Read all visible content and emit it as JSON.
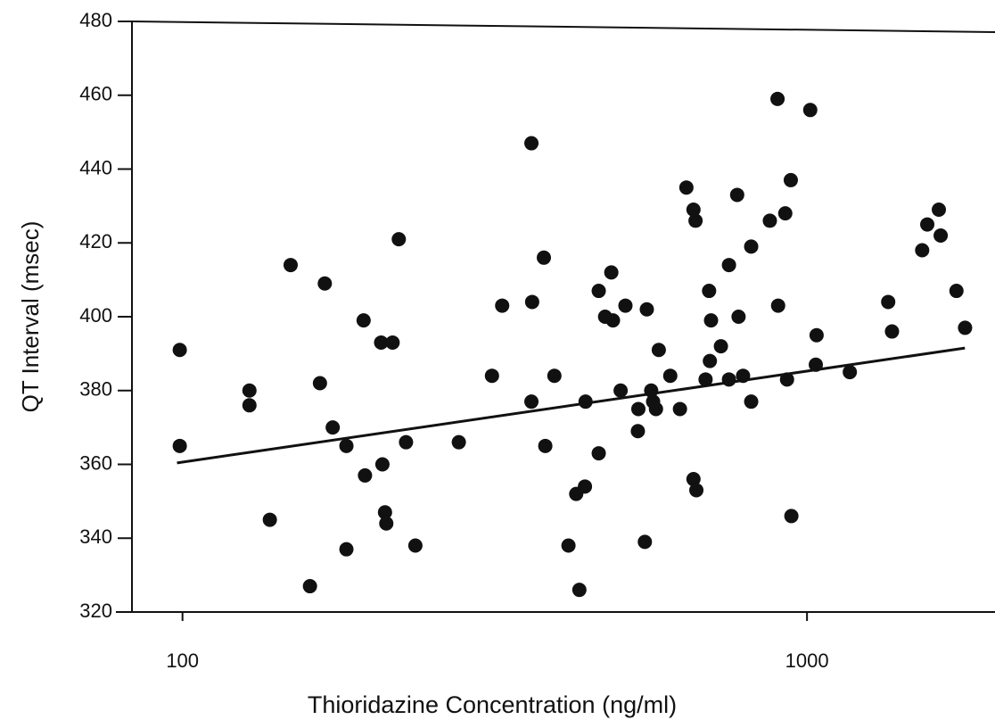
{
  "chart_data": {
    "type": "scatter",
    "x_label": "Thioridazine Concentration (ng/ml)",
    "y_label": "QT Interval (msec)",
    "x_log": true,
    "xlim": [
      83,
      2000
    ],
    "xticks": [
      100,
      1000
    ],
    "ylim": [
      320,
      480
    ],
    "yticks": [
      320,
      340,
      360,
      380,
      400,
      420,
      440,
      460,
      480
    ],
    "color": "#111111",
    "x": [
      99,
      99,
      128,
      128,
      138,
      149,
      160,
      166,
      169,
      174,
      183,
      183,
      195,
      196,
      208,
      217,
      209,
      211,
      212,
      222,
      228,
      236,
      277,
      313,
      325,
      362,
      363,
      362,
      381,
      379,
      394,
      415,
      427,
      432,
      441,
      442,
      464,
      464,
      475,
      486,
      489,
      503,
      512,
      536,
      537,
      550,
      554,
      563,
      567,
      573,
      579,
      604,
      626,
      641,
      658,
      663,
      658,
      665,
      688,
      697,
      699,
      702,
      728,
      750,
      750,
      773,
      777,
      790,
      814,
      814,
      872,
      897,
      899,
      923,
      929,
      942,
      944,
      1012,
      1033,
      1036,
      1171,
      1349,
      1368,
      1529,
      1558,
      1626,
      1637,
      1735,
      1791
    ],
    "values": [
      391,
      365,
      380,
      376,
      345,
      414,
      327,
      382,
      409,
      370,
      365,
      337,
      399,
      357,
      393,
      393,
      360,
      347,
      344,
      421,
      366,
      338,
      366,
      384,
      403,
      447,
      404,
      377,
      365,
      416,
      384,
      338,
      352,
      326,
      354,
      377,
      407,
      363,
      400,
      412,
      399,
      380,
      403,
      369,
      375,
      339,
      402,
      380,
      377,
      375,
      391,
      384,
      375,
      435,
      429,
      426,
      356,
      353,
      383,
      407,
      388,
      399,
      392,
      414,
      383,
      433,
      400,
      384,
      419,
      377,
      426,
      459,
      403,
      428,
      383,
      437,
      346,
      456,
      387,
      395,
      385,
      404,
      396,
      418,
      425,
      429,
      422,
      407,
      397
    ],
    "fit": {
      "x": [
        98,
        1790
      ],
      "values": [
        360.4,
        391.5
      ]
    }
  }
}
